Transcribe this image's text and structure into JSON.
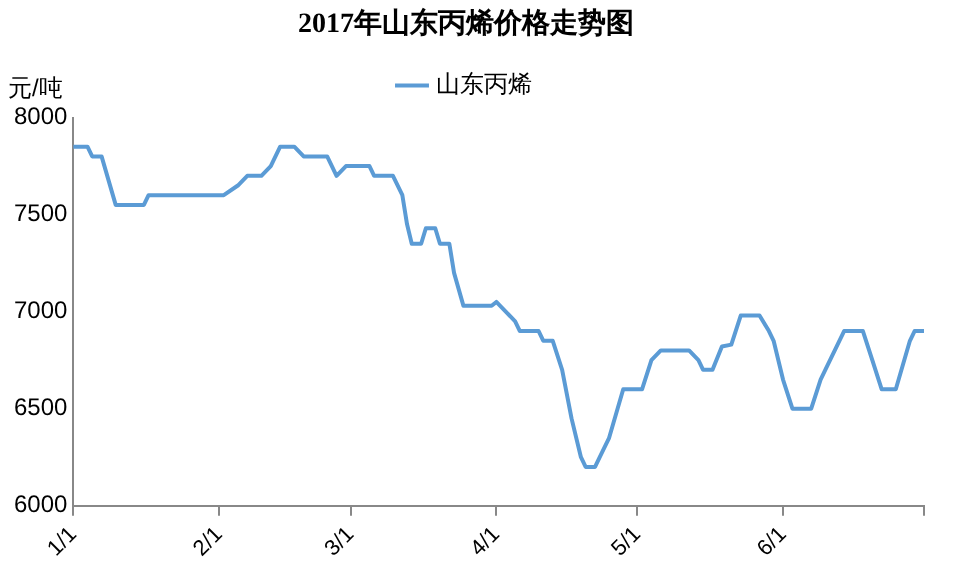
{
  "chart_data": {
    "type": "line",
    "title": "2017年山东丙烯价格走势图",
    "ylabel": "元/吨",
    "x": [
      "2017-01-01",
      "2017-01-04",
      "2017-01-05",
      "2017-01-07",
      "2017-01-10",
      "2017-01-16",
      "2017-01-17",
      "2017-02-02",
      "2017-02-05",
      "2017-02-07",
      "2017-02-10",
      "2017-02-12",
      "2017-02-14",
      "2017-02-17",
      "2017-02-19",
      "2017-02-24",
      "2017-02-26",
      "2017-02-28",
      "2017-03-05",
      "2017-03-06",
      "2017-03-10",
      "2017-03-12",
      "2017-03-13",
      "2017-03-14",
      "2017-03-16",
      "2017-03-17",
      "2017-03-19",
      "2017-03-20",
      "2017-03-22",
      "2017-03-23",
      "2017-03-25",
      "2017-03-31",
      "2017-04-01",
      "2017-04-03",
      "2017-04-05",
      "2017-04-06",
      "2017-04-10",
      "2017-04-11",
      "2017-04-13",
      "2017-04-15",
      "2017-04-17",
      "2017-04-19",
      "2017-04-20",
      "2017-04-22",
      "2017-04-23",
      "2017-04-25",
      "2017-04-28",
      "2017-05-02",
      "2017-05-04",
      "2017-05-06",
      "2017-05-12",
      "2017-05-14",
      "2017-05-15",
      "2017-05-17",
      "2017-05-19",
      "2017-05-21",
      "2017-05-23",
      "2017-05-27",
      "2017-05-29",
      "2017-05-30",
      "2017-06-01",
      "2017-06-03",
      "2017-06-07",
      "2017-06-09",
      "2017-06-10",
      "2017-06-14",
      "2017-06-18",
      "2017-06-20",
      "2017-06-22",
      "2017-06-25",
      "2017-06-28",
      "2017-06-29",
      "2017-07-01"
    ],
    "series": [
      {
        "name": "山东丙烯",
        "color": "#5b9bd5",
        "values": [
          7850,
          7850,
          7800,
          7800,
          7550,
          7550,
          7600,
          7600,
          7650,
          7700,
          7700,
          7750,
          7850,
          7850,
          7800,
          7800,
          7700,
          7750,
          7750,
          7700,
          7700,
          7600,
          7450,
          7350,
          7350,
          7430,
          7430,
          7350,
          7350,
          7200,
          7030,
          7030,
          7050,
          7000,
          6950,
          6900,
          6900,
          6850,
          6850,
          6700,
          6450,
          6250,
          6200,
          6200,
          6250,
          6350,
          6600,
          6600,
          6750,
          6800,
          6800,
          6750,
          6700,
          6700,
          6820,
          6830,
          6980,
          6980,
          6900,
          6850,
          6650,
          6500,
          6500,
          6650,
          6700,
          6900,
          6900,
          6750,
          6600,
          6600,
          6850,
          6900,
          6900
        ]
      }
    ],
    "xlim": [
      "2017-01-01",
      "2017-07-01"
    ],
    "xticks": [
      {
        "value": "2017-01-01",
        "label": "1/1"
      },
      {
        "value": "2017-02-01",
        "label": "2/1"
      },
      {
        "value": "2017-03-01",
        "label": "3/1"
      },
      {
        "value": "2017-04-01",
        "label": "4/1"
      },
      {
        "value": "2017-05-01",
        "label": "5/1"
      },
      {
        "value": "2017-06-01",
        "label": "6/1"
      },
      {
        "value": "2017-07-01",
        "label": null
      }
    ],
    "ylim": [
      6000,
      8000
    ],
    "yticks": [
      6000,
      6500,
      7000,
      7500,
      8000
    ],
    "grid": false,
    "legend": "top",
    "marker": "none",
    "line_style": "solid"
  }
}
